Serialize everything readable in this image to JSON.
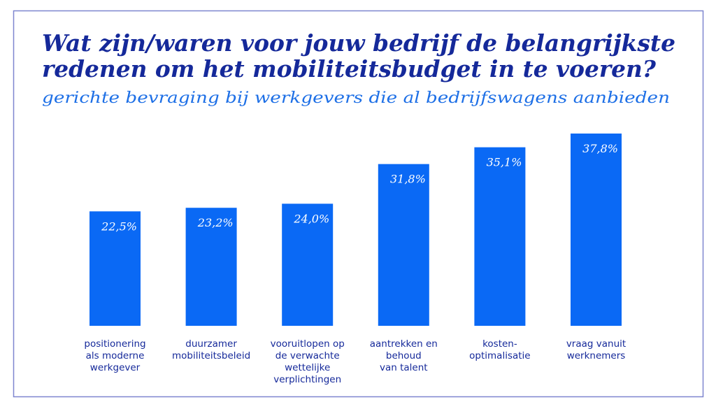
{
  "title_lines": [
    "Wat zijn/waren voor jouw bedrijf de belangrijkste",
    "redenen om het mobiliteitsbudget in te voeren?"
  ],
  "subtitle": "gerichte bevraging bij werkgevers die al bedrijfswagens aanbieden",
  "colors": {
    "title": "#15299a",
    "subtitle": "#1d6fe6",
    "bar": "#0a69f5",
    "frame": "#7e86cf",
    "category_text": "#15299a"
  },
  "chart_data": {
    "type": "bar",
    "categories": [
      [
        "positionering",
        "als moderne",
        "werkgever"
      ],
      [
        "duurzamer",
        "mobiliteitsbeleid"
      ],
      [
        "vooruitlopen op",
        "de verwachte",
        "wettelijke",
        "verplichtingen"
      ],
      [
        "aantrekken en",
        "behoud",
        "van talent"
      ],
      [
        "kosten-",
        "optimalisatie"
      ],
      [
        "vraag vanuit",
        "werknemers"
      ]
    ],
    "values": [
      22.5,
      23.2,
      24.0,
      31.8,
      35.1,
      37.8
    ],
    "data_labels": [
      "22,5%",
      "23,2%",
      "24,0%",
      "31,8%",
      "35,1%",
      "37,8%"
    ],
    "title": "Wat zijn/waren voor jouw bedrijf de belangrijkste redenen om het mobiliteitsbudget in te voeren?",
    "subtitle": "gerichte bevraging bij werkgevers die al bedrijfswagens aanbieden",
    "xlabel": "",
    "ylabel": "",
    "ylim": [
      0,
      40
    ],
    "grid": false,
    "axes_visible": false
  }
}
